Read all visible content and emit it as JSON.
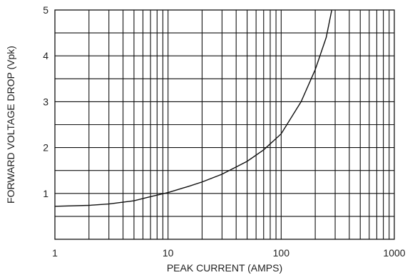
{
  "chart_data": {
    "type": "line",
    "title": "",
    "xlabel": "PEAK CURRENT (AMPS)",
    "ylabel": "FORWARD VOLTAGE DROP (Vpk)",
    "x_scale": "log",
    "xlim": [
      1,
      1000
    ],
    "ylim": [
      0,
      5
    ],
    "x_ticks": [
      "1",
      "10",
      "100",
      "1000"
    ],
    "y_ticks": [
      "1",
      "2",
      "3",
      "4",
      "5"
    ],
    "grid": true,
    "minor_y_step": 0.5,
    "series": [
      {
        "values": [
          {
            "x": 1,
            "y": 0.72
          },
          {
            "x": 2,
            "y": 0.74
          },
          {
            "x": 3,
            "y": 0.77
          },
          {
            "x": 5,
            "y": 0.84
          },
          {
            "x": 7,
            "y": 0.93
          },
          {
            "x": 10,
            "y": 1.02
          },
          {
            "x": 15,
            "y": 1.15
          },
          {
            "x": 20,
            "y": 1.25
          },
          {
            "x": 30,
            "y": 1.42
          },
          {
            "x": 50,
            "y": 1.7
          },
          {
            "x": 70,
            "y": 1.95
          },
          {
            "x": 100,
            "y": 2.3
          },
          {
            "x": 150,
            "y": 3.0
          },
          {
            "x": 200,
            "y": 3.7
          },
          {
            "x": 250,
            "y": 4.4
          },
          {
            "x": 280,
            "y": 5.0
          }
        ]
      }
    ]
  }
}
